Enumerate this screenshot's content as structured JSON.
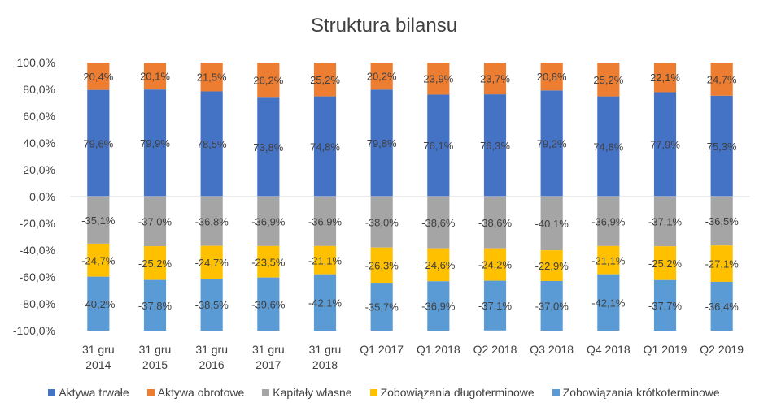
{
  "chart_data": {
    "type": "bar",
    "stacked": true,
    "title": "Struktura bilansu",
    "categories": [
      "31 gru 2014",
      "31 gru 2015",
      "31 gru 2016",
      "31 gru 2017",
      "31 gru 2018",
      "Q1 2017",
      "Q1 2018",
      "Q2 2018",
      "Q3 2018",
      "Q4 2018",
      "Q1 2019",
      "Q2 2019"
    ],
    "category_lines": [
      [
        "31 gru",
        "2014"
      ],
      [
        "31 gru",
        "2015"
      ],
      [
        "31 gru",
        "2016"
      ],
      [
        "31 gru",
        "2017"
      ],
      [
        "31 gru",
        "2018"
      ],
      [
        "Q1 2017"
      ],
      [
        "Q1 2018"
      ],
      [
        "Q2 2018"
      ],
      [
        "Q3 2018"
      ],
      [
        "Q4 2018"
      ],
      [
        "Q1 2019"
      ],
      [
        "Q2 2019"
      ]
    ],
    "ylim": [
      -100,
      100
    ],
    "yticks": [
      100,
      80,
      60,
      40,
      20,
      0,
      -20,
      -40,
      -60,
      -80,
      -100
    ],
    "ytick_labels": [
      "100,0%",
      "80,0%",
      "60,0%",
      "40,0%",
      "20,0%",
      "0,0%",
      "-20,0%",
      "-40,0%",
      "-60,0%",
      "-80,0%",
      "-100,0%"
    ],
    "grid": false,
    "legend_position": "bottom",
    "series": [
      {
        "name": "Aktywa trwałe",
        "color": "#4472C4",
        "values": [
          79.6,
          79.9,
          78.5,
          73.8,
          74.8,
          79.8,
          76.1,
          76.3,
          79.2,
          74.8,
          77.9,
          75.3
        ],
        "labels": [
          "79,6%",
          "79,9%",
          "78,5%",
          "73,8%",
          "74,8%",
          "79,8%",
          "76,1%",
          "76,3%",
          "79,2%",
          "74,8%",
          "77,9%",
          "75,3%"
        ]
      },
      {
        "name": "Aktywa obrotowe",
        "color": "#ED7D31",
        "values": [
          20.4,
          20.1,
          21.5,
          26.2,
          25.2,
          20.2,
          23.9,
          23.7,
          20.8,
          25.2,
          22.1,
          24.7
        ],
        "labels": [
          "20,4%",
          "20,1%",
          "21,5%",
          "26,2%",
          "25,2%",
          "20,2%",
          "23,9%",
          "23,7%",
          "20,8%",
          "25,2%",
          "22,1%",
          "24,7%"
        ]
      },
      {
        "name": "Kapitały własne",
        "color": "#A5A5A5",
        "values": [
          -35.1,
          -37.0,
          -36.8,
          -36.9,
          -36.9,
          -38.0,
          -38.6,
          -38.6,
          -40.1,
          -36.9,
          -37.1,
          -36.5
        ],
        "labels": [
          "-35,1%",
          "-37,0%",
          "-36,8%",
          "-36,9%",
          "-36,9%",
          "-38,0%",
          "-38,6%",
          "-38,6%",
          "-40,1%",
          "-36,9%",
          "-37,1%",
          "-36,5%"
        ]
      },
      {
        "name": "Zobowiązania długoterminowe",
        "color": "#FFC000",
        "values": [
          -24.7,
          -25.2,
          -24.7,
          -23.5,
          -21.1,
          -26.3,
          -24.6,
          -24.2,
          -22.9,
          -21.1,
          -25.2,
          -27.1
        ],
        "labels": [
          "-24,7%",
          "-25,2%",
          "-24,7%",
          "-23,5%",
          "-21,1%",
          "-26,3%",
          "-24,6%",
          "-24,2%",
          "-22,9%",
          "-21,1%",
          "-25,2%",
          "-27,1%"
        ]
      },
      {
        "name": "Zobowiązania krótkoterminowe",
        "color": "#5B9BD5",
        "values": [
          -40.2,
          -37.8,
          -38.5,
          -39.6,
          -42.1,
          -35.7,
          -36.9,
          -37.1,
          -37.0,
          -42.1,
          -37.7,
          -36.4
        ],
        "labels": [
          "-40,2%",
          "-37,8%",
          "-38,5%",
          "-39,6%",
          "-42,1%",
          "-35,7%",
          "-36,9%",
          "-37,1%",
          "-37,0%",
          "-42,1%",
          "-37,7%",
          "-36,4%"
        ]
      }
    ]
  }
}
